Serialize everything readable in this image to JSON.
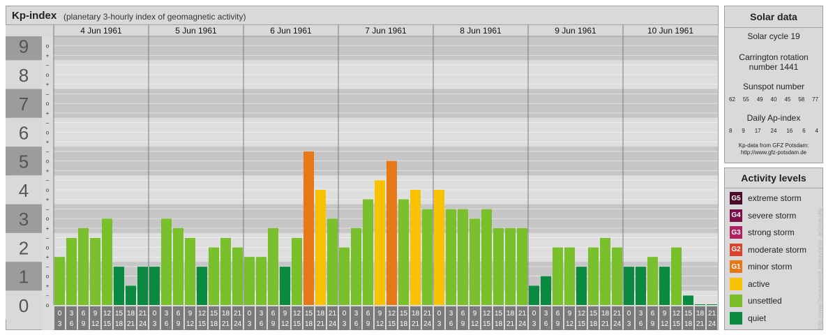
{
  "header": {
    "title": "Kp-index",
    "subtitle": "(planetary 3-hourly index of geomagnetic activity)"
  },
  "chart_data": {
    "type": "bar",
    "title": "Kp-index",
    "subtitle": "(planetary 3-hourly index of geomagnetic activity)",
    "days": [
      "4 Jun 1961",
      "5 Jun 1961",
      "6 Jun 1961",
      "7 Jun 1961",
      "8 Jun 1961",
      "9 Jun 1961",
      "10 Jun 1961"
    ],
    "interval_labels_top": [
      "0",
      "3",
      "6",
      "9",
      "12",
      "15",
      "18",
      "21"
    ],
    "interval_labels_bottom": [
      "3",
      "6",
      "9",
      "12",
      "15",
      "18",
      "21",
      "24"
    ],
    "y_ticks": [
      "0",
      "1",
      "2",
      "3",
      "4",
      "5",
      "6",
      "7",
      "8",
      "9"
    ],
    "y_minor_labels": [
      "+",
      "o",
      "–"
    ],
    "ylim": [
      0,
      9.33
    ],
    "values": [
      1.67,
      2.33,
      2.67,
      2.33,
      3.0,
      1.33,
      0.67,
      1.33,
      1.33,
      3.0,
      2.67,
      2.33,
      1.33,
      2.0,
      2.33,
      2.0,
      1.67,
      1.67,
      2.67,
      1.33,
      2.33,
      5.33,
      4.0,
      3.0,
      2.0,
      2.67,
      3.67,
      4.33,
      5.0,
      3.67,
      4.0,
      3.33,
      4.0,
      3.33,
      3.33,
      3.0,
      3.33,
      2.67,
      2.67,
      2.67,
      0.67,
      1.0,
      2.0,
      2.0,
      1.33,
      2.0,
      2.33,
      2.0,
      1.33,
      1.33,
      1.67,
      1.33,
      2.0,
      0.33,
      0.0,
      0.0
    ],
    "grid": true,
    "legend_position": "right"
  },
  "colors": {
    "quiet": "#0a8a3e",
    "unsettled": "#7ac02c",
    "active": "#f8c200",
    "minor_storm": "#e77817",
    "moderate_storm": "#d9442a",
    "strong_storm": "#b0205f",
    "severe_storm": "#7a1048",
    "extreme_storm": "#4a0a2a",
    "band_dark": "#c6c6c6",
    "band_light": "#dedede",
    "y_band_dark": "#9c9c9c",
    "y_band_light": "#d9d9d9",
    "interval_box": "#7a7a7a"
  },
  "solar": {
    "title": "Solar data",
    "cycle": "Solar cycle 19",
    "carrington_line1": "Carrington rotation",
    "carrington_line2": "number 1441",
    "sunspot_title": "Sunspot number",
    "sunspot_values": [
      "62",
      "55",
      "49",
      "40",
      "45",
      "58",
      "77"
    ],
    "ap_title": "Daily Ap-index",
    "ap_values": [
      "8",
      "9",
      "17",
      "24",
      "16",
      "6",
      "4"
    ],
    "source_line1": "Kp-data from GFZ Potsdam:",
    "source_line2": "http://www.gfz-potsdam.de"
  },
  "activity": {
    "title": "Activity levels",
    "levels": [
      {
        "code": "G5",
        "label": "extreme storm",
        "color": "#4a0a2a"
      },
      {
        "code": "G4",
        "label": "severe storm",
        "color": "#7a1048"
      },
      {
        "code": "G3",
        "label": "strong storm",
        "color": "#b0205f"
      },
      {
        "code": "G2",
        "label": "moderate storm",
        "color": "#d9442a"
      },
      {
        "code": "G1",
        "label": "minor storm",
        "color": "#e77817"
      },
      {
        "code": "",
        "label": "active",
        "color": "#f8c200"
      },
      {
        "code": "",
        "label": "unsettled",
        "color": "#7ac02c"
      },
      {
        "code": "",
        "label": "quiet",
        "color": "#0a8a3e"
      }
    ]
  },
  "watermark": "http://www.theusaenrde.at/aurora/kp_archive.php"
}
